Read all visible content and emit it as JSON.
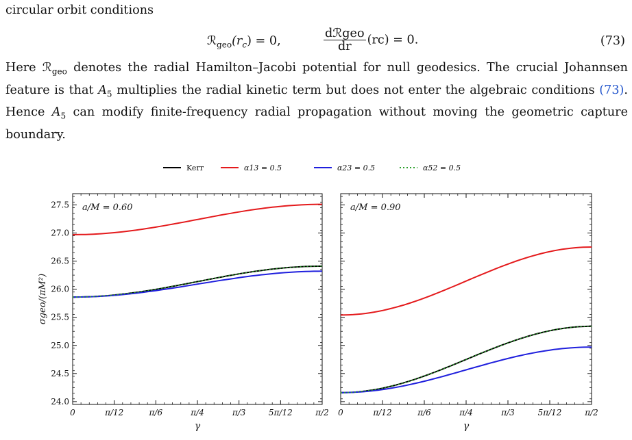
{
  "text": {
    "intro": "circular orbit conditions",
    "eq_lhs": "ℛgeo(rc) = 0,",
    "eq_lhs_main": "ℛ",
    "eq_lhs_sub": "geo",
    "eq_lhs_rest": "(r",
    "eq_lhs_c": "c",
    "eq_lhs_end": ") = 0,",
    "eq_rhs_num": "dℛgeo",
    "eq_rhs_den": "dr",
    "eq_rhs_rest": "(rc) = 0.",
    "eq_number": "(73)",
    "para_1": "Here ",
    "para_2": " denotes the radial Hamilton–Jacobi potential for null geodesics. The crucial Johannsen feature is that ",
    "para_3": " multiplies the radial kinetic term but does not enter the algebraic conditions ",
    "para_ref": "(73)",
    "para_4": ". Hence ",
    "para_5": " can modify finite-frequency radial propagation without moving the geometric capture boundary.",
    "sym_R": "ℛ",
    "sym_geo": "geo",
    "sym_A": "A",
    "sym_5": "5"
  },
  "chart_data": [
    {
      "type": "line",
      "panel_label": "a/M = 0.60",
      "xlabel": "γ",
      "ylabel": "σgeo/(πM²)",
      "xlim": [
        0,
        1.5708
      ],
      "ylim": [
        23.95,
        27.7
      ],
      "x_ticks": [
        0,
        0.2618,
        0.5236,
        0.7854,
        1.0472,
        1.309,
        1.5708
      ],
      "x_tick_labels": [
        "0",
        "π/12",
        "π/6",
        "π/4",
        "π/3",
        "5π/12",
        "π/2"
      ],
      "y_ticks": [
        24.0,
        24.5,
        25.0,
        25.5,
        26.0,
        26.5,
        27.0,
        27.5
      ],
      "y_tick_labels": [
        "24.0",
        "24.5",
        "25.0",
        "25.5",
        "26.0",
        "26.5",
        "27.0",
        "27.5"
      ],
      "series": [
        {
          "name": "Kerr",
          "color": "#000000",
          "style": "solid",
          "start": 25.86,
          "end": 26.41
        },
        {
          "name": "α13 = 0.5",
          "color": "#e41a1c",
          "style": "solid",
          "start": 26.97,
          "end": 27.51
        },
        {
          "name": "α23 = 0.5",
          "color": "#1f1fdd",
          "style": "solid",
          "start": 25.86,
          "end": 26.32
        },
        {
          "name": "α52 = 0.5",
          "color": "#2ca02c",
          "style": "dotted",
          "start": 25.86,
          "end": 26.41
        }
      ]
    },
    {
      "type": "line",
      "panel_label": "a/M = 0.90",
      "xlabel": "γ",
      "ylabel": "",
      "xlim": [
        0,
        1.5708
      ],
      "ylim": [
        23.95,
        27.7
      ],
      "x_ticks": [
        0,
        0.2618,
        0.5236,
        0.7854,
        1.0472,
        1.309,
        1.5708
      ],
      "x_tick_labels": [
        "0",
        "π/12",
        "π/6",
        "π/4",
        "π/3",
        "5π/12",
        "π/2"
      ],
      "y_ticks": [
        24.0,
        24.5,
        25.0,
        25.5,
        26.0,
        26.5,
        27.0,
        27.5
      ],
      "series": [
        {
          "name": "Kerr",
          "color": "#000000",
          "style": "solid",
          "start": 24.16,
          "end": 25.34
        },
        {
          "name": "α13 = 0.5",
          "color": "#e41a1c",
          "style": "solid",
          "start": 25.54,
          "end": 26.75
        },
        {
          "name": "α23 = 0.5",
          "color": "#1f1fdd",
          "style": "solid",
          "start": 24.16,
          "end": 24.97
        },
        {
          "name": "α52 = 0.5",
          "color": "#2ca02c",
          "style": "dotted",
          "start": 24.16,
          "end": 25.34
        }
      ]
    }
  ],
  "legend": [
    {
      "name": "Kerr",
      "color": "#000000",
      "style": "solid"
    },
    {
      "name": "α13 = 0.5",
      "color": "#e41a1c",
      "style": "solid"
    },
    {
      "name": "α23 = 0.5",
      "color": "#1f1fdd",
      "style": "solid"
    },
    {
      "name": "α52 = 0.5",
      "color": "#2ca02c",
      "style": "dotted"
    }
  ]
}
